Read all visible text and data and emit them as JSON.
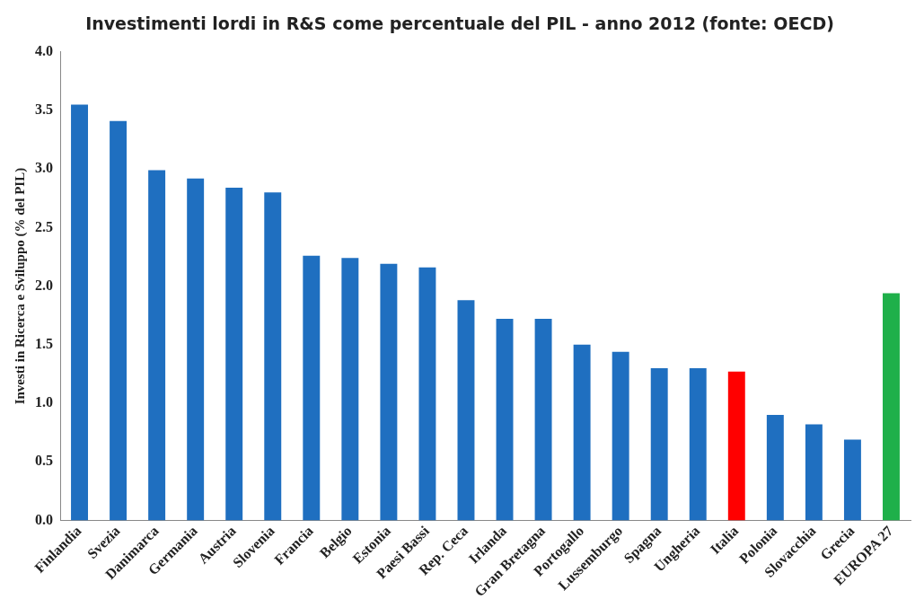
{
  "chart_data": {
    "type": "bar",
    "title": "Investimenti lordi in R&S come percentuale del PIL - anno 2012 (fonte: OECD)",
    "ylabel": "Investi in Ricerca e Sviluppo (% del PIL)",
    "categories": [
      "Finlandia",
      "Svezia",
      "Danimarca",
      "Germania",
      "Austria",
      "Slovenia",
      "Francia",
      "Belgio",
      "Estonia",
      "Paesi Bassi",
      "Rep. Ceca",
      "Irlanda",
      "Gran Bretagna",
      "Portogallo",
      "Lussemburgo",
      "Spagna",
      "Ungheria",
      "Italia",
      "Polonia",
      "Slovacchia",
      "Grecia",
      "EUROPA 27"
    ],
    "values": [
      3.55,
      3.41,
      2.99,
      2.92,
      2.84,
      2.8,
      2.26,
      2.24,
      2.19,
      2.16,
      1.88,
      1.72,
      1.72,
      1.5,
      1.44,
      1.3,
      1.3,
      1.27,
      0.9,
      0.82,
      0.69,
      1.94
    ],
    "colors": [
      "#1f6fc0",
      "#1f6fc0",
      "#1f6fc0",
      "#1f6fc0",
      "#1f6fc0",
      "#1f6fc0",
      "#1f6fc0",
      "#1f6fc0",
      "#1f6fc0",
      "#1f6fc0",
      "#1f6fc0",
      "#1f6fc0",
      "#1f6fc0",
      "#1f6fc0",
      "#1f6fc0",
      "#1f6fc0",
      "#1f6fc0",
      "#ff0000",
      "#1f6fc0",
      "#1f6fc0",
      "#1f6fc0",
      "#1fb04a"
    ],
    "ylim": [
      0,
      4
    ],
    "yticks": [
      {
        "value": 0,
        "label": "0.0"
      },
      {
        "value": 0.5,
        "label": "0.5"
      },
      {
        "value": 1,
        "label": "1.0"
      },
      {
        "value": 1.5,
        "label": "1.5"
      },
      {
        "value": 2,
        "label": "2.0"
      },
      {
        "value": 2.5,
        "label": "2.5"
      },
      {
        "value": 3,
        "label": "3.0"
      },
      {
        "value": 3.5,
        "label": "3.5"
      },
      {
        "value": 4,
        "label": "4.0"
      }
    ],
    "grid": false,
    "legend": false
  }
}
